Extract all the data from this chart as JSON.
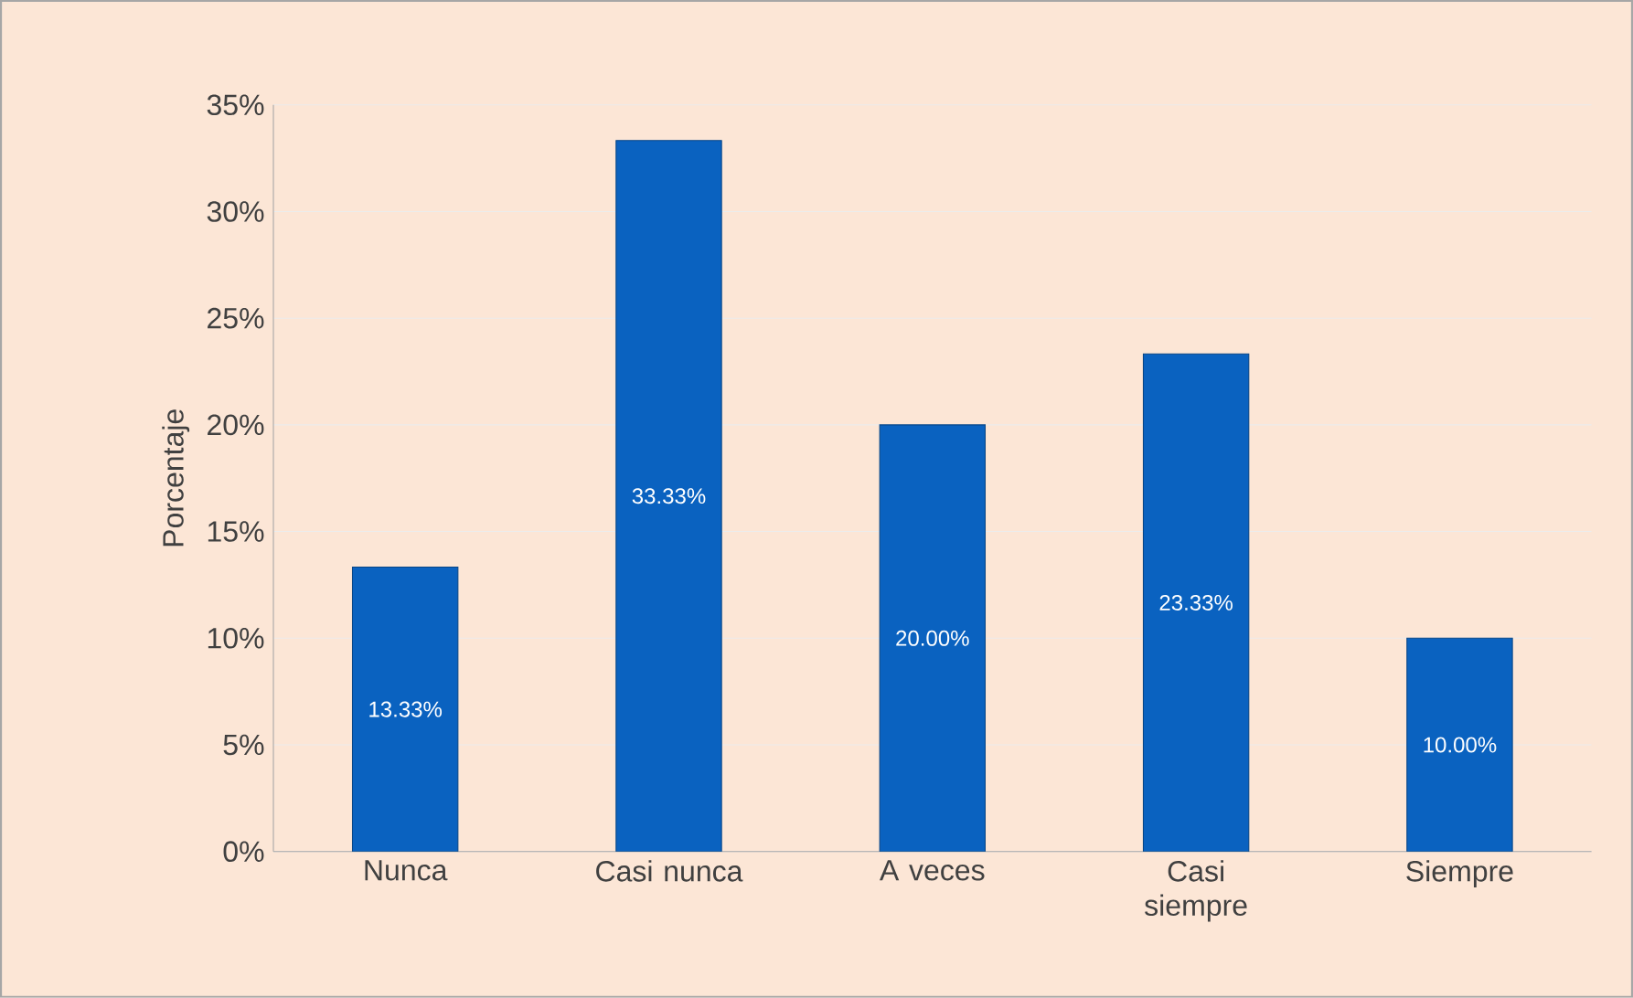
{
  "chart_data": {
    "type": "bar",
    "ylabel": "Porcentaje",
    "categories": [
      "Nunca",
      "Casi nunca",
      "A veces",
      "Casi siempre",
      "Siempre"
    ],
    "values": [
      13.33,
      33.33,
      20.0,
      23.33,
      10.0
    ],
    "value_labels": [
      "13.33%",
      "33.33%",
      "20.00%",
      "23.33%",
      "10.00%"
    ],
    "color": "#0a62c0",
    "ylim": [
      0,
      35
    ],
    "yticks": [
      {
        "value": 0,
        "label": "0%"
      },
      {
        "value": 5,
        "label": "5%"
      },
      {
        "value": 10,
        "label": "10%"
      },
      {
        "value": 15,
        "label": "15%"
      },
      {
        "value": 20,
        "label": "20%"
      },
      {
        "value": 25,
        "label": "25%"
      },
      {
        "value": 30,
        "label": "30%"
      },
      {
        "value": 35,
        "label": "35%"
      }
    ],
    "grid": "y"
  }
}
